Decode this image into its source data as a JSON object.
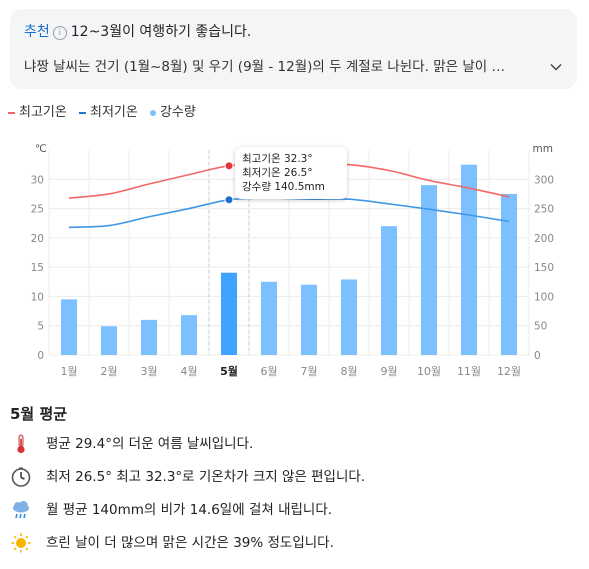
{
  "recommend": {
    "tag": "추천",
    "info_glyph": "i",
    "headline": "12~3월이 여행하기 좋습니다.",
    "description": "냐짱 날씨는 건기 (1월~8월) 및 우기 (9월 - 12월)의 두 계절로 나뉜다. 맑은 날이 …"
  },
  "legend": [
    {
      "label": "최고기온",
      "color": "#f26767",
      "marker": "line"
    },
    {
      "label": "최저기온",
      "color": "#1f77c9",
      "marker": "line"
    },
    {
      "label": "강수량",
      "color": "#7cc0ff",
      "marker": "dot"
    }
  ],
  "colors": {
    "bar": "#7cc0ff",
    "bar_selected": "#3ea2ff",
    "high_line": "#f26767",
    "low_line": "#3f97e6",
    "grid": "#ececec",
    "tick_text": "#888888"
  },
  "chart_data": {
    "type": "bar",
    "categories": [
      "1월",
      "2월",
      "3월",
      "4월",
      "5월",
      "6월",
      "7월",
      "8월",
      "9월",
      "10월",
      "11월",
      "12월"
    ],
    "selected_index": 4,
    "y_left": {
      "unit": "℃",
      "ticks": [
        0,
        5,
        10,
        15,
        20,
        25,
        30
      ],
      "range": [
        0,
        35
      ]
    },
    "y_right": {
      "unit": "mm",
      "ticks": [
        0,
        50,
        100,
        150,
        200,
        250,
        300
      ],
      "range": [
        0,
        350
      ]
    },
    "series": [
      {
        "name": "강수량",
        "type": "bar",
        "axis": "right",
        "values": [
          95,
          49,
          60,
          68,
          140.5,
          125,
          120,
          129,
          220,
          290,
          325,
          275
        ]
      },
      {
        "name": "최고기온",
        "type": "line",
        "axis": "left",
        "values": [
          26.8,
          27.5,
          29.2,
          30.8,
          32.3,
          32.7,
          32.4,
          32.5,
          31.5,
          29.8,
          28.5,
          27.0
        ]
      },
      {
        "name": "최저기온",
        "type": "line",
        "axis": "left",
        "values": [
          21.8,
          22.1,
          23.6,
          25.0,
          26.5,
          26.8,
          26.6,
          26.6,
          25.8,
          24.9,
          23.9,
          22.8
        ]
      }
    ],
    "grid": true,
    "legend_position": "top-left"
  },
  "tooltip": {
    "lines": [
      "최고기온 32.3°",
      "최저기온 26.5°",
      "강수량 140.5mm"
    ]
  },
  "summary": {
    "title": "5월 평균",
    "facts": [
      {
        "icon": "thermometer-icon",
        "text": "평균 29.4°의 더운 여름 날씨입니다."
      },
      {
        "icon": "clock-icon",
        "text": "최저 26.5° 최고 32.3°로 기온차가 크지 않은 편입니다."
      },
      {
        "icon": "rain-cloud-icon",
        "text": "월 평균 140mm의 비가 14.6일에 걸쳐 내립니다."
      },
      {
        "icon": "sun-icon",
        "text": "흐린 날이 더 많으며 맑은 시간은 39% 정도입니다."
      }
    ]
  }
}
